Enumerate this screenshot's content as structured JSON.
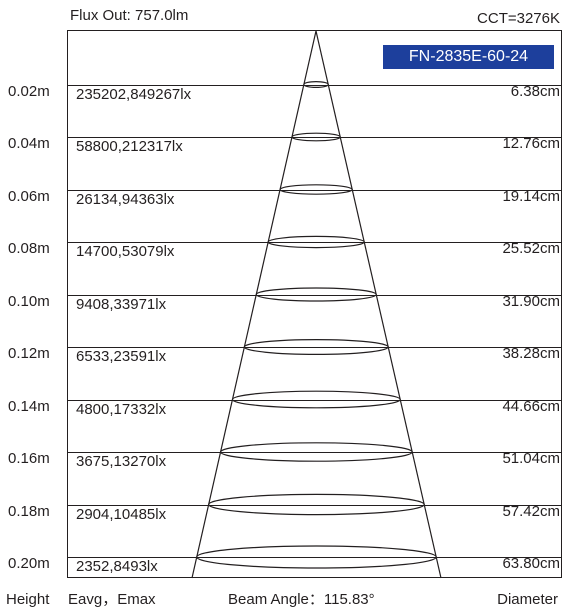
{
  "header": {
    "flux_out": "Flux Out: 757.0lm",
    "cct": "CCT=3276K",
    "model": "FN-2835E-60-24"
  },
  "rows": [
    {
      "height": "0.02m",
      "lux": "235202,849267lx",
      "diameter": "6.38cm"
    },
    {
      "height": "0.04m",
      "lux": "58800,212317lx",
      "diameter": "12.76cm"
    },
    {
      "height": "0.06m",
      "lux": "26134,94363lx",
      "diameter": "19.14cm"
    },
    {
      "height": "0.08m",
      "lux": "14700,53079lx",
      "diameter": "25.52cm"
    },
    {
      "height": "0.10m",
      "lux": "9408,33971lx",
      "diameter": "31.90cm"
    },
    {
      "height": "0.12m",
      "lux": "6533,23591lx",
      "diameter": "38.28cm"
    },
    {
      "height": "0.14m",
      "lux": "4800,17332lx",
      "diameter": "44.66cm"
    },
    {
      "height": "0.16m",
      "lux": "3675,13270lx",
      "diameter": "51.04cm"
    },
    {
      "height": "0.18m",
      "lux": "2904,10485lx",
      "diameter": "57.42cm"
    },
    {
      "height": "0.20m",
      "lux": "2352,8493lx",
      "diameter": "63.80cm"
    }
  ],
  "footer": {
    "height_label": "Height",
    "eavg_emax_label": "Eavg，Emax",
    "beam_angle": "Beam Angle：115.83°",
    "diameter_label": "Diameter"
  }
}
